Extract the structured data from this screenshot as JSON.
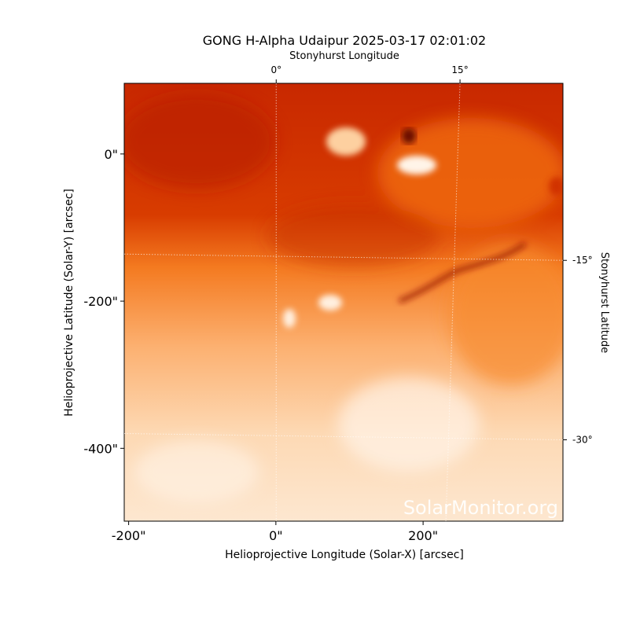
{
  "chart_data": {
    "type": "image",
    "title": "GONG H-Alpha Udaipur 2025-03-17 02:01:02",
    "x_label": "Helioprojective Longitude (Solar-X) [arcsec]",
    "y_label": "Helioprojective Latitude (Solar-Y) [arcsec]",
    "x2_label": "Stonyhurst Longitude",
    "y2_label": "Stonyhurst Latitude",
    "watermark": "SolarMonitor.org",
    "xlim": [
      -206,
      390
    ],
    "ylim": [
      -499,
      96
    ],
    "xticks": [
      {
        "value": -200,
        "label": "-200\""
      },
      {
        "value": 0,
        "label": "0\""
      },
      {
        "value": 200,
        "label": "200\""
      }
    ],
    "yticks": [
      {
        "value": 0,
        "label": "0\""
      },
      {
        "value": -200,
        "label": "-200\""
      },
      {
        "value": -400,
        "label": "-400\""
      }
    ],
    "x2lim": [
      -12.4,
      23.4
    ],
    "x2ticks": [
      {
        "value": 0,
        "label": "0°"
      },
      {
        "value": 15,
        "label": "15°"
      }
    ],
    "y2lim": [
      -36.8,
      -0.2
    ],
    "y2ticks": [
      {
        "value": -15,
        "label": "-15°"
      },
      {
        "value": -30,
        "label": "-30°"
      }
    ],
    "grid": true
  }
}
